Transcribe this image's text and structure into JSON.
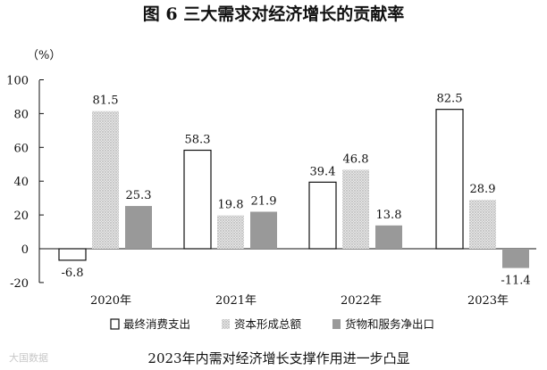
{
  "chart_data": {
    "type": "bar",
    "title": "图 6    三大需求对经济增长的贡献率",
    "ylabel": "（%）",
    "xlabel": "",
    "categories": [
      "2020年",
      "2021年",
      "2022年",
      "2023年"
    ],
    "series": [
      {
        "name": "最终消费支出",
        "values": [
          -6.8,
          58.3,
          39.4,
          82.5
        ],
        "fill": "white"
      },
      {
        "name": "资本形成总额",
        "values": [
          81.5,
          19.8,
          46.8,
          28.9
        ],
        "fill": "dots"
      },
      {
        "name": "货物和服务净出口",
        "values": [
          25.3,
          21.9,
          13.8,
          -11.4
        ],
        "fill": "#999999"
      }
    ],
    "yticks": [
      "100",
      "80",
      "60",
      "40",
      "20",
      "0",
      "-20"
    ],
    "ylim": [
      -20,
      100
    ],
    "grid": false,
    "legend": "bottom"
  },
  "caption": "2023年内需对经济增长支撑作用进一步凸显",
  "watermark": "大国数据"
}
